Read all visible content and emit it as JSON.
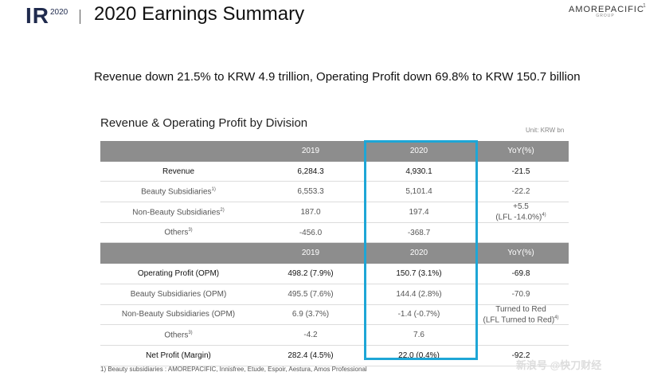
{
  "header": {
    "ir": "IR",
    "year": "2020",
    "title": "2020 Earnings Summary",
    "logo_main": "AMOREPACIFIC",
    "logo_sub": "GROUP",
    "page_number": "1"
  },
  "headline": "Revenue down 21.5% to KRW 4.9 trillion, Operating Profit down 69.8% to KRW 150.7 billion",
  "section_title": "Revenue & Operating Profit by Division",
  "unit": "Unit: KRW bn",
  "table1": {
    "header": [
      "",
      "2019",
      "2020",
      "YoY(%)"
    ],
    "rows": [
      {
        "label": "Revenue",
        "sup": "",
        "v2019": "6,284.3",
        "v2020": "4,930.1",
        "yoy": "-21.5",
        "yoy2": ""
      },
      {
        "label": "Beauty Subsidiaries",
        "sup": "1)",
        "v2019": "6,553.3",
        "v2020": "5,101.4",
        "yoy": "-22.2",
        "yoy2": ""
      },
      {
        "label": "Non-Beauty Subsidiaries",
        "sup": "2)",
        "v2019": "187.0",
        "v2020": "197.4",
        "yoy": "+5.5",
        "yoy2": "(LFL -14.0%)",
        "yoy2_sup": "4)"
      },
      {
        "label": "Others",
        "sup": "3)",
        "v2019": "-456.0",
        "v2020": "-368.7",
        "yoy": "",
        "yoy2": ""
      }
    ]
  },
  "table2": {
    "header": [
      "",
      "2019",
      "2020",
      "YoY(%)"
    ],
    "rows": [
      {
        "label": "Operating Profit (OPM)",
        "sup": "",
        "v2019": "498.2 (7.9%)",
        "v2020": "150.7 (3.1%)",
        "yoy": "-69.8",
        "yoy2": ""
      },
      {
        "label": "Beauty Subsidiaries (OPM)",
        "sup": "",
        "v2019": "495.5 (7.6%)",
        "v2020": "144.4 (2.8%)",
        "yoy": "-70.9",
        "yoy2": ""
      },
      {
        "label": "Non-Beauty Subsidiaries (OPM)",
        "sup": "",
        "v2019": "6.9 (3.7%)",
        "v2020": "-1.4 (-0.7%)",
        "yoy": "Turned to Red",
        "yoy2": "(LFL Turned to Red)",
        "yoy2_sup": "4)"
      },
      {
        "label": "Others",
        "sup": "3)",
        "v2019": "-4.2",
        "v2020": "7.6",
        "yoy": "",
        "yoy2": ""
      },
      {
        "label": "Net Profit (Margin)",
        "sup": "",
        "v2019": "282.4 (4.5%)",
        "v2020": "22.0 (0.4%)",
        "yoy": "-92.2",
        "yoy2": ""
      }
    ]
  },
  "footnote": "1) Beauty subsidiaries : AMOREPACIFIC, Innisfree, Etude, Espoir, Aestura, Amos Professional",
  "watermark": "新浪号 @快刀财经",
  "colors": {
    "header_fill": "#8d8d8d",
    "highlight": "#1ea6d6",
    "brand": "#1f2a4d"
  }
}
